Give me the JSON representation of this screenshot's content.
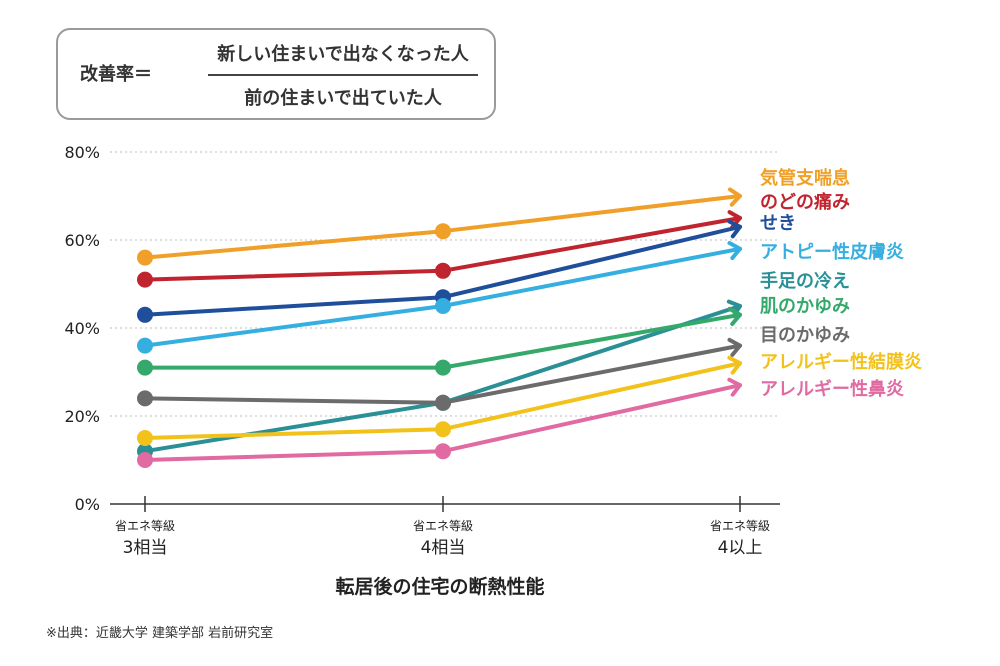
{
  "formula": {
    "label": "改善率＝",
    "numerator": "新しい住まいで出なくなった人",
    "denominator": "前の住まいで出ていた人"
  },
  "chart_data": {
    "type": "line",
    "xlabel": "転居後の住宅の断熱性能",
    "categories": [
      {
        "top": "省エネ等級",
        "bottom": "3相当"
      },
      {
        "top": "省エネ等級",
        "bottom": "4相当"
      },
      {
        "top": "省エネ等級",
        "bottom": "4以上"
      }
    ],
    "y_ticks": [
      "0%",
      "20%",
      "40%",
      "60%",
      "80%"
    ],
    "ylim": [
      0,
      80
    ],
    "grid": "horizontal dotted",
    "series": [
      {
        "name": "気管支喘息",
        "color": "#f0a028",
        "values": [
          56,
          62,
          70
        ]
      },
      {
        "name": "のどの痛み",
        "color": "#c0242e",
        "values": [
          51,
          53,
          65
        ]
      },
      {
        "name": "せき",
        "color": "#1f4e9b",
        "values": [
          43,
          47,
          63
        ]
      },
      {
        "name": "アトピー性皮膚炎",
        "color": "#35aee0",
        "values": [
          36,
          45,
          58
        ]
      },
      {
        "name": "手足の冷え",
        "color": "#2a9096",
        "values": [
          12,
          23,
          45
        ]
      },
      {
        "name": "肌のかゆみ",
        "color": "#35a86b",
        "values": [
          31,
          31,
          43
        ]
      },
      {
        "name": "目のかゆみ",
        "color": "#6b6b6b",
        "values": [
          24,
          23,
          36
        ]
      },
      {
        "name": "アレルギー性結膜炎",
        "color": "#f2c21b",
        "values": [
          15,
          17,
          32
        ]
      },
      {
        "name": "アレルギー性鼻炎",
        "color": "#e06aa1",
        "values": [
          10,
          12,
          27
        ]
      }
    ]
  },
  "source": "※出典：近畿大学 建築学部 岩前研究室"
}
